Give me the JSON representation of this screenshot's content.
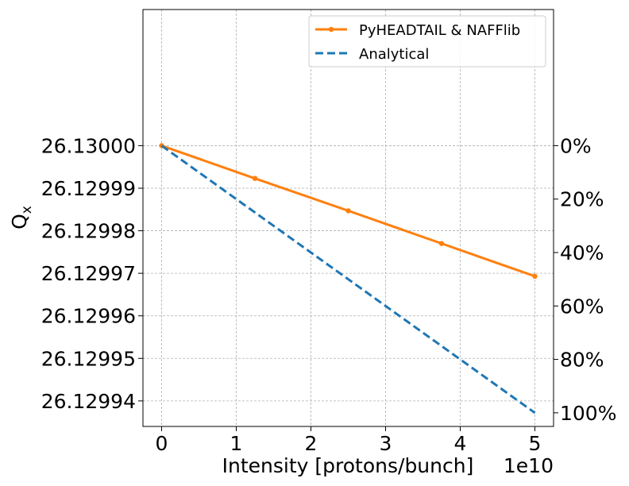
{
  "chart_data": {
    "type": "line",
    "xlabel": "Intensity [protons/bunch]",
    "x_offset_text": "1e10",
    "ylabel_main": "Q",
    "ylabel_sub": "x",
    "xlim": [
      -0.25,
      5.25
    ],
    "ylim": [
      26.129934,
      26.130032
    ],
    "x_ticks": [
      0,
      1,
      2,
      3,
      4,
      5
    ],
    "x_tick_labels": [
      "0",
      "1",
      "2",
      "3",
      "4",
      "5"
    ],
    "y_ticks": [
      26.13,
      26.12999,
      26.12998,
      26.12997,
      26.12996,
      26.12995,
      26.12994
    ],
    "y_tick_labels": [
      "26.13000",
      "26.12999",
      "26.12998",
      "26.12997",
      "26.12996",
      "26.12995",
      "26.12994"
    ],
    "y2_ticks_frac": [
      0,
      0.2,
      0.4,
      0.6,
      0.8,
      1.0
    ],
    "y2_tick_labels": [
      "0%",
      "20%",
      "40%",
      "60%",
      "80%",
      "100%"
    ],
    "grid": true,
    "legend_position": "top-right",
    "series": [
      {
        "name": "PyHEADTAIL & NAFFlib",
        "color": "#ff7f0e",
        "style": "solid-marker",
        "x": [
          0,
          1.25,
          2.5,
          3.75,
          5
        ],
        "y": [
          26.13,
          26.1299923,
          26.1299847,
          26.129977,
          26.1299693
        ]
      },
      {
        "name": "Analytical",
        "color": "#1f77b4",
        "style": "dashed",
        "x": [
          0,
          5
        ],
        "y": [
          26.13,
          26.1299372
        ]
      }
    ]
  }
}
